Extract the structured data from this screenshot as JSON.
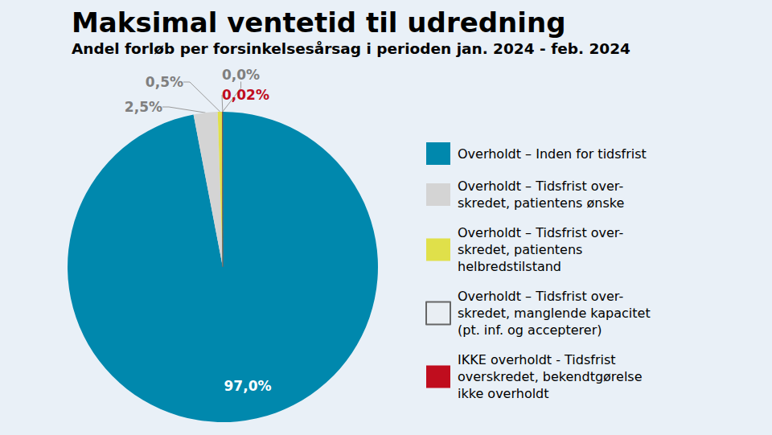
{
  "chart_data": {
    "type": "pie",
    "title": "Maksimal ventetid til udredning",
    "subtitle": "Andel forløb per forsinkelsesårsag i perioden jan. 2024 - feb. 2024",
    "categories": [
      "Overholdt – Inden for tidsfrist",
      "Overholdt – Tidsfrist over-\nskredet, patientens ønske",
      "Overholdt – Tidsfrist over-\nskredet, patientens\nhelbredstilstand",
      "Overholdt – Tidsfrist over-\nskredet, manglende kapacitet\n(pt. inf. og accepterer)",
      "IKKE overholdt - Tidsfrist\noverskredet, bekendtgørelse\nikke overholdt"
    ],
    "values": [
      97.0,
      2.5,
      0.5,
      0.0,
      0.02
    ],
    "value_labels": [
      "97,0%",
      "2,5%",
      "0,5%",
      "0,0%",
      "0,02%"
    ],
    "colors": [
      "#0088ad",
      "#d4d4d4",
      "#e0e04a",
      "#e9eef3",
      "#c00d1e"
    ],
    "data_labels": true,
    "legend": "right"
  }
}
